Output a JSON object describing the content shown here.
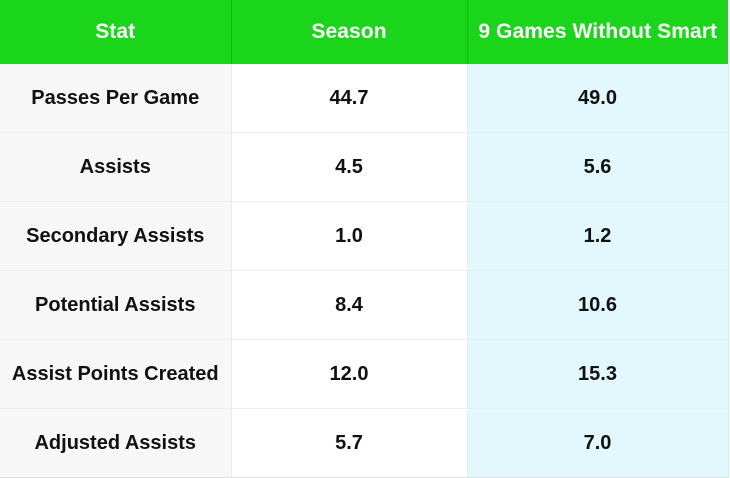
{
  "header": {
    "stat": "Stat",
    "season": "Season",
    "nine_games": "9 Games Without Smart"
  },
  "rows": [
    {
      "stat": "Passes Per Game",
      "season": "44.7",
      "nine_games": "49.0"
    },
    {
      "stat": "Assists",
      "season": "4.5",
      "nine_games": "5.6"
    },
    {
      "stat": "Secondary Assists",
      "season": "1.0",
      "nine_games": "1.2"
    },
    {
      "stat": "Potential Assists",
      "season": "8.4",
      "nine_games": "10.6"
    },
    {
      "stat": "Assist Points Created",
      "season": "12.0",
      "nine_games": "15.3"
    },
    {
      "stat": "Adjusted Assists",
      "season": "5.7",
      "nine_games": "7.0"
    }
  ],
  "colors": {
    "header_bg": "#1bd51b",
    "header_text": "#ffffff",
    "stat_col_bg": "#f7f7f7",
    "highlight_col_bg": "#e3f8fd"
  }
}
